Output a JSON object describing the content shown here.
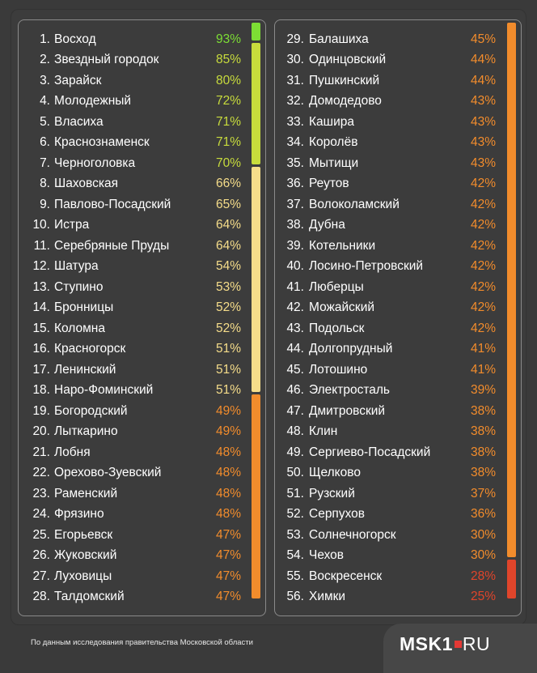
{
  "colors": {
    "green": "#7dde34",
    "yellow_green": "#c8dc3c",
    "light_yellow": "#f6dd8a",
    "orange": "#f28c2c",
    "red": "#e0452b",
    "text": "#ffffff"
  },
  "left": [
    {
      "n": "1.",
      "name": "Восход",
      "pct": "93%",
      "c": "green"
    },
    {
      "n": "2.",
      "name": "Звездный городок",
      "pct": "85%",
      "c": "yellow_green"
    },
    {
      "n": "3.",
      "name": "Зарайск",
      "pct": "80%",
      "c": "yellow_green"
    },
    {
      "n": "4.",
      "name": "Молодежный",
      "pct": "72%",
      "c": "yellow_green"
    },
    {
      "n": "5.",
      "name": "Власиха",
      "pct": "71%",
      "c": "yellow_green"
    },
    {
      "n": "6.",
      "name": "Краснознаменск",
      "pct": "71%",
      "c": "yellow_green"
    },
    {
      "n": "7.",
      "name": "Черноголовка",
      "pct": "70%",
      "c": "yellow_green"
    },
    {
      "n": "8.",
      "name": "Шаховская",
      "pct": "66%",
      "c": "light_yellow"
    },
    {
      "n": "9.",
      "name": "Павлово-Посадский",
      "pct": "65%",
      "c": "light_yellow"
    },
    {
      "n": "10.",
      "name": "Истра",
      "pct": "64%",
      "c": "light_yellow"
    },
    {
      "n": "11.",
      "name": "Серебряные Пруды",
      "pct": "64%",
      "c": "light_yellow"
    },
    {
      "n": "12.",
      "name": "Шатура",
      "pct": "54%",
      "c": "light_yellow"
    },
    {
      "n": "13.",
      "name": "Ступино",
      "pct": "53%",
      "c": "light_yellow"
    },
    {
      "n": "14.",
      "name": "Бронницы",
      "pct": "52%",
      "c": "light_yellow"
    },
    {
      "n": "15.",
      "name": "Коломна",
      "pct": "52%",
      "c": "light_yellow"
    },
    {
      "n": "16.",
      "name": "Красногорск",
      "pct": "51%",
      "c": "light_yellow"
    },
    {
      "n": "17.",
      "name": "Ленинский",
      "pct": "51%",
      "c": "light_yellow"
    },
    {
      "n": "18.",
      "name": "Наро-Фоминский",
      "pct": "51%",
      "c": "light_yellow"
    },
    {
      "n": "19.",
      "name": "Богородский",
      "pct": "49%",
      "c": "orange"
    },
    {
      "n": "20.",
      "name": "Лыткарино",
      "pct": "49%",
      "c": "orange"
    },
    {
      "n": "21.",
      "name": "Лобня",
      "pct": "48%",
      "c": "orange"
    },
    {
      "n": "22.",
      "name": "Орехово-Зуевский",
      "pct": "48%",
      "c": "orange"
    },
    {
      "n": "23.",
      "name": "Раменский",
      "pct": "48%",
      "c": "orange"
    },
    {
      "n": "24.",
      "name": "Фрязино",
      "pct": "48%",
      "c": "orange"
    },
    {
      "n": "25.",
      "name": "Егорьевск",
      "pct": "47%",
      "c": "orange"
    },
    {
      "n": "26.",
      "name": "Жуковский",
      "pct": "47%",
      "c": "orange"
    },
    {
      "n": "27.",
      "name": "Луховицы",
      "pct": "47%",
      "c": "orange"
    },
    {
      "n": "28.",
      "name": "Талдомский",
      "pct": "47%",
      "c": "orange"
    }
  ],
  "right": [
    {
      "n": "29.",
      "name": "Балашиха",
      "pct": "45%",
      "c": "orange"
    },
    {
      "n": "30.",
      "name": "Одинцовский",
      "pct": "44%",
      "c": "orange"
    },
    {
      "n": "31.",
      "name": "Пушкинский",
      "pct": "44%",
      "c": "orange"
    },
    {
      "n": "32.",
      "name": "Домодедово",
      "pct": "43%",
      "c": "orange"
    },
    {
      "n": "33.",
      "name": "Кашира",
      "pct": "43%",
      "c": "orange"
    },
    {
      "n": "34.",
      "name": "Королёв",
      "pct": "43%",
      "c": "orange"
    },
    {
      "n": "35.",
      "name": "Мытищи",
      "pct": "43%",
      "c": "orange"
    },
    {
      "n": "36.",
      "name": "Реутов",
      "pct": "42%",
      "c": "orange"
    },
    {
      "n": "37.",
      "name": "Волоколамский",
      "pct": "42%",
      "c": "orange"
    },
    {
      "n": "38.",
      "name": "Дубна",
      "pct": "42%",
      "c": "orange"
    },
    {
      "n": "39.",
      "name": "Котельники",
      "pct": "42%",
      "c": "orange"
    },
    {
      "n": "40.",
      "name": "Лосино-Петровский",
      "pct": "42%",
      "c": "orange"
    },
    {
      "n": "41.",
      "name": "Люберцы",
      "pct": "42%",
      "c": "orange"
    },
    {
      "n": "42.",
      "name": "Можайский",
      "pct": "42%",
      "c": "orange"
    },
    {
      "n": "43.",
      "name": "Подольск",
      "pct": "42%",
      "c": "orange"
    },
    {
      "n": "44.",
      "name": "Долгопрудный",
      "pct": "41%",
      "c": "orange"
    },
    {
      "n": "45.",
      "name": "Лотошино",
      "pct": "41%",
      "c": "orange"
    },
    {
      "n": "46.",
      "name": "Электросталь",
      "pct": "39%",
      "c": "orange"
    },
    {
      "n": "47.",
      "name": "Дмитровский",
      "pct": "38%",
      "c": "orange"
    },
    {
      "n": "48.",
      "name": "Клин",
      "pct": "38%",
      "c": "orange"
    },
    {
      "n": "49.",
      "name": "Сергиево-Посадский",
      "pct": "38%",
      "c": "orange"
    },
    {
      "n": "50.",
      "name": "Щелково",
      "pct": "38%",
      "c": "orange"
    },
    {
      "n": "51.",
      "name": "Рузский",
      "pct": "37%",
      "c": "orange"
    },
    {
      "n": "52.",
      "name": "Серпухов",
      "pct": "36%",
      "c": "orange"
    },
    {
      "n": "53.",
      "name": "Солнечногорск",
      "pct": "30%",
      "c": "orange"
    },
    {
      "n": "54.",
      "name": "Чехов",
      "pct": "30%",
      "c": "orange"
    },
    {
      "n": "55.",
      "name": "Воскресенск",
      "pct": "28%",
      "c": "red"
    },
    {
      "n": "56.",
      "name": "Химки",
      "pct": "25%",
      "c": "red"
    }
  ],
  "footer": {
    "source": "По данным исследования правительства Московской области",
    "logo_main": "MSK1",
    "logo_suffix": "RU"
  }
}
